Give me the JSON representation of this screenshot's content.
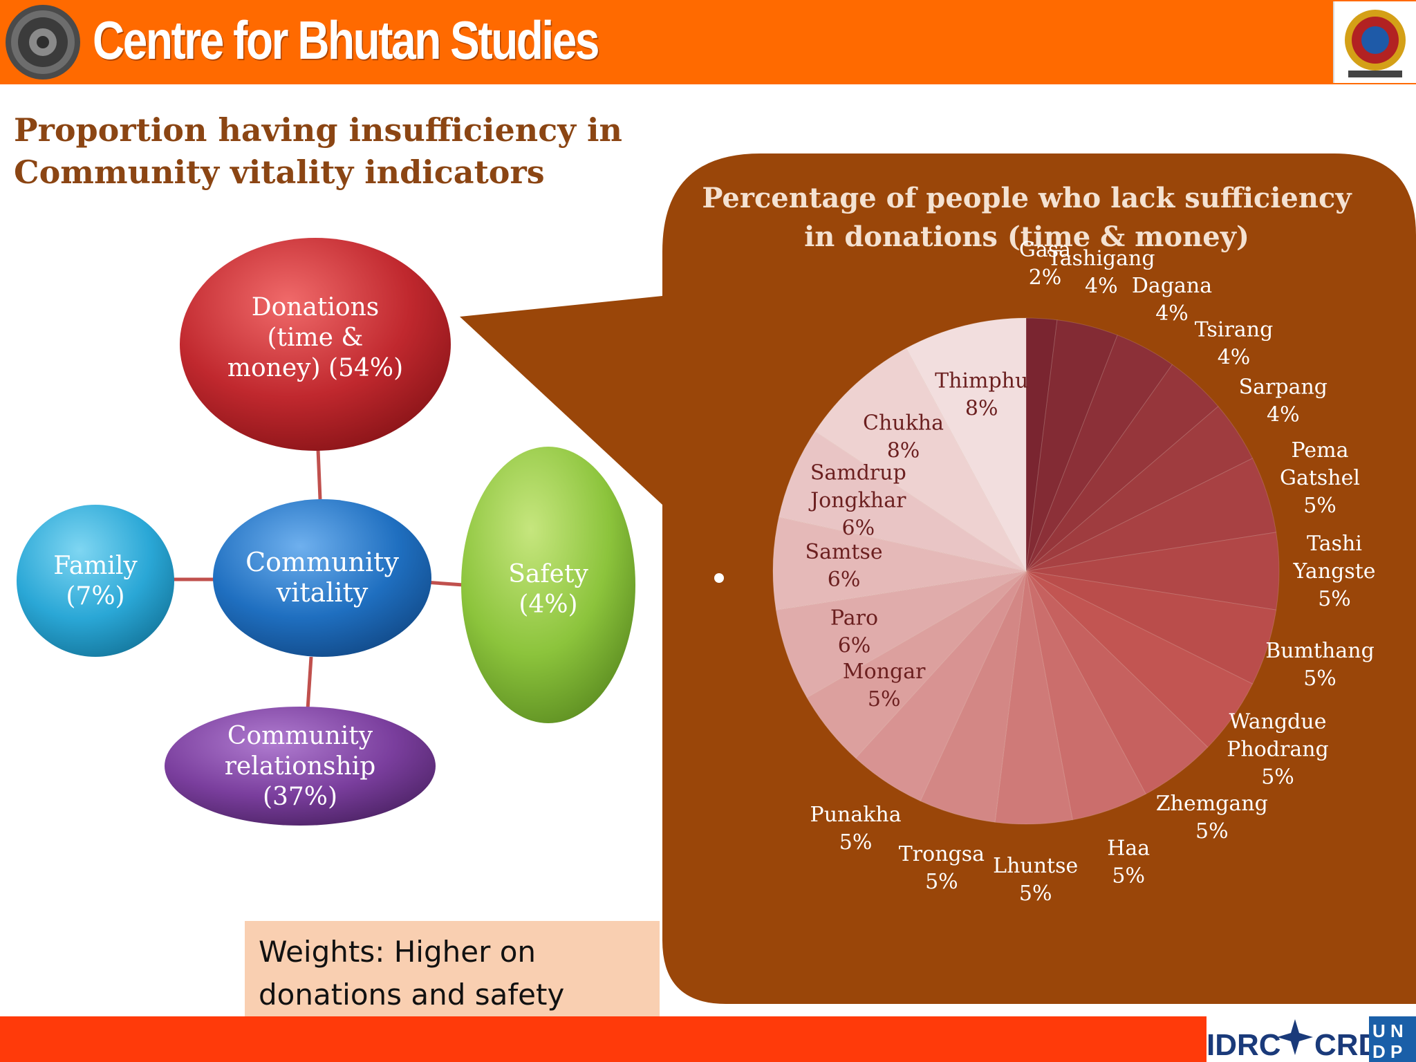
{
  "header": {
    "organization": "Centre for Bhutan Studies"
  },
  "slide": {
    "title_line1": "Proportion having insufficiency in",
    "title_line2": "Community vitality indicators"
  },
  "diagram": {
    "center": {
      "line1": "Community",
      "line2": "vitality"
    },
    "nodes": {
      "donations": {
        "line1": "Donations",
        "line2": "(time &",
        "line3": "money) (54%)",
        "value": 54
      },
      "family": {
        "line1": "Family",
        "line2": "(7%)",
        "value": 7
      },
      "safety": {
        "line1": "Safety",
        "line2": "(4%)",
        "value": 4
      },
      "relationship": {
        "line1": "Community",
        "line2": "relationship",
        "line3": "(37%)",
        "value": 37
      }
    },
    "colors": {
      "donations": "#c0282e",
      "family": "#2aa7d6",
      "safety": "#8cc43c",
      "relationship": "#7a3e9d",
      "center": "#1f6fc0",
      "connector": "#c0504d"
    }
  },
  "note": {
    "line1": "Weights:  Higher on",
    "line2": "donations and safety"
  },
  "chart_data": {
    "type": "pie",
    "title_line1": "Percentage of people who lack sufficiency",
    "title_line2": "in donations (time & money)",
    "unit": "%",
    "slices": [
      {
        "name": "Gasa",
        "value": 2
      },
      {
        "name": "Tashigang",
        "value": 4
      },
      {
        "name": "Dagana",
        "value": 4
      },
      {
        "name": "Tsirang",
        "value": 4
      },
      {
        "name": "Sarpang",
        "value": 4
      },
      {
        "name": "Pema Gatshel",
        "value": 5
      },
      {
        "name": "Tashi Yangste",
        "value": 5
      },
      {
        "name": "Bumthang",
        "value": 5
      },
      {
        "name": "Wangdue Phodrang",
        "value": 5
      },
      {
        "name": "Zhemgang",
        "value": 5
      },
      {
        "name": "Haa",
        "value": 5
      },
      {
        "name": "Lhuntse",
        "value": 5
      },
      {
        "name": "Trongsa",
        "value": 5
      },
      {
        "name": "Punakha",
        "value": 5
      },
      {
        "name": "Mongar",
        "value": 5
      },
      {
        "name": "Paro",
        "value": 6
      },
      {
        "name": "Samtse",
        "value": 6
      },
      {
        "name": "Samdrup Jongkhar",
        "value": 6
      },
      {
        "name": "Chukha",
        "value": 8
      },
      {
        "name": "Thimphu",
        "value": 8
      }
    ],
    "colors": {
      "panel": "#9a4609",
      "slice_start": "#7a2530",
      "slice_mid": "#c0504d",
      "slice_end": "#f2dede"
    }
  }
}
